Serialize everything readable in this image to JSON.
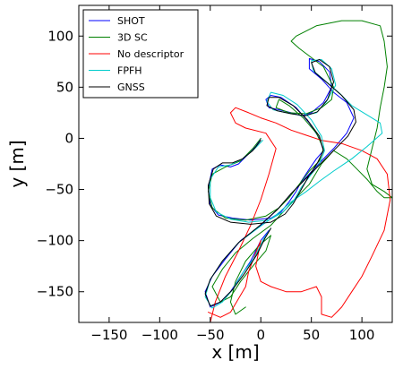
{
  "chart_data": {
    "type": "line",
    "xlabel": "x [m]",
    "ylabel": "y [m]",
    "xlim": [
      -180,
      130
    ],
    "ylim": [
      -180,
      130
    ],
    "xticks": [
      "−150",
      "−100",
      "−50",
      "0",
      "50",
      "100"
    ],
    "xtick_values": [
      -150,
      -100,
      -50,
      0,
      50,
      100
    ],
    "yticks": [
      "−150",
      "−100",
      "−50",
      "0",
      "50",
      "100"
    ],
    "ytick_values": [
      -150,
      -100,
      -50,
      0,
      50,
      100
    ],
    "grid": false,
    "legend_position": "top-left",
    "series": [
      {
        "name": "SHOT",
        "color": "#0000ff",
        "points": [
          [
            0,
            0
          ],
          [
            -5,
            -8
          ],
          [
            -15,
            -18
          ],
          [
            -22,
            -25
          ],
          [
            -30,
            -28
          ],
          [
            -40,
            -26
          ],
          [
            -48,
            -30
          ],
          [
            -52,
            -48
          ],
          [
            -50,
            -65
          ],
          [
            -42,
            -75
          ],
          [
            -28,
            -78
          ],
          [
            -10,
            -80
          ],
          [
            10,
            -78
          ],
          [
            20,
            -72
          ],
          [
            28,
            -62
          ],
          [
            35,
            -52
          ],
          [
            40,
            -42
          ],
          [
            48,
            -30
          ],
          [
            55,
            -20
          ],
          [
            62,
            -12
          ],
          [
            58,
            0
          ],
          [
            48,
            15
          ],
          [
            35,
            30
          ],
          [
            20,
            40
          ],
          [
            10,
            42
          ],
          [
            5,
            38
          ],
          [
            8,
            30
          ],
          [
            18,
            28
          ],
          [
            30,
            25
          ],
          [
            40,
            22
          ],
          [
            50,
            25
          ],
          [
            62,
            35
          ],
          [
            70,
            50
          ],
          [
            68,
            65
          ],
          [
            58,
            75
          ],
          [
            48,
            78
          ],
          [
            48,
            68
          ],
          [
            60,
            58
          ],
          [
            72,
            45
          ],
          [
            85,
            35
          ],
          [
            92,
            20
          ],
          [
            85,
            5
          ],
          [
            72,
            -10
          ],
          [
            60,
            -22
          ],
          [
            45,
            -38
          ],
          [
            32,
            -52
          ],
          [
            18,
            -68
          ],
          [
            0,
            -85
          ],
          [
            -20,
            -100
          ],
          [
            -35,
            -118
          ],
          [
            -48,
            -135
          ],
          [
            -55,
            -150
          ],
          [
            -50,
            -165
          ],
          [
            -40,
            -160
          ],
          [
            -30,
            -150
          ],
          [
            -20,
            -135
          ],
          [
            -10,
            -120
          ],
          [
            0,
            -100
          ],
          [
            8,
            -90
          ]
        ]
      },
      {
        "name": "3D SC",
        "color": "#008000",
        "points": [
          [
            0,
            0
          ],
          [
            -8,
            -10
          ],
          [
            -20,
            -22
          ],
          [
            -35,
            -28
          ],
          [
            -48,
            -35
          ],
          [
            -52,
            -52
          ],
          [
            -48,
            -68
          ],
          [
            -35,
            -78
          ],
          [
            -15,
            -80
          ],
          [
            5,
            -76
          ],
          [
            18,
            -68
          ],
          [
            28,
            -58
          ],
          [
            38,
            -45
          ],
          [
            48,
            -32
          ],
          [
            58,
            -22
          ],
          [
            62,
            -10
          ],
          [
            55,
            5
          ],
          [
            42,
            20
          ],
          [
            28,
            32
          ],
          [
            18,
            38
          ],
          [
            15,
            30
          ],
          [
            28,
            25
          ],
          [
            45,
            24
          ],
          [
            60,
            30
          ],
          [
            70,
            38
          ],
          [
            72,
            50
          ],
          [
            62,
            70
          ],
          [
            38,
            88
          ],
          [
            30,
            95
          ],
          [
            35,
            100
          ],
          [
            55,
            110
          ],
          [
            80,
            115
          ],
          [
            100,
            115
          ],
          [
            118,
            110
          ],
          [
            122,
            95
          ],
          [
            125,
            70
          ],
          [
            122,
            50
          ],
          [
            118,
            30
          ],
          [
            115,
            10
          ],
          [
            110,
            -10
          ],
          [
            105,
            -30
          ],
          [
            110,
            -45
          ],
          [
            122,
            -52
          ],
          [
            130,
            -58
          ],
          [
            122,
            -58
          ],
          [
            115,
            -52
          ],
          [
            105,
            -40
          ],
          [
            95,
            -30
          ],
          [
            85,
            -20
          ],
          [
            72,
            -12
          ],
          [
            60,
            -25
          ],
          [
            48,
            -45
          ],
          [
            35,
            -58
          ],
          [
            22,
            -72
          ],
          [
            10,
            -85
          ],
          [
            -8,
            -98
          ],
          [
            -25,
            -112
          ],
          [
            -38,
            -128
          ],
          [
            -48,
            -145
          ],
          [
            -40,
            -160
          ],
          [
            -30,
            -155
          ],
          [
            -20,
            -140
          ],
          [
            -8,
            -125
          ],
          [
            5,
            -110
          ],
          [
            10,
            -95
          ],
          [
            -2,
            -105
          ],
          [
            -15,
            -120
          ],
          [
            -25,
            -140
          ],
          [
            -30,
            -160
          ],
          [
            -25,
            -172
          ],
          [
            -15,
            -165
          ]
        ]
      },
      {
        "name": "No descriptor",
        "color": "#ff0000",
        "points": [
          [
            -50,
            -180
          ],
          [
            -45,
            -160
          ],
          [
            -35,
            -135
          ],
          [
            -22,
            -110
          ],
          [
            -10,
            -85
          ],
          [
            0,
            -60
          ],
          [
            8,
            -35
          ],
          [
            15,
            -10
          ],
          [
            5,
            5
          ],
          [
            -15,
            10
          ],
          [
            -25,
            15
          ],
          [
            -30,
            25
          ],
          [
            -25,
            30
          ],
          [
            -12,
            25
          ],
          [
            0,
            20
          ],
          [
            15,
            15
          ],
          [
            30,
            8
          ],
          [
            45,
            3
          ],
          [
            60,
            -2
          ],
          [
            80,
            -5
          ],
          [
            100,
            -12
          ],
          [
            115,
            -20
          ],
          [
            125,
            -35
          ],
          [
            128,
            -60
          ],
          [
            122,
            -90
          ],
          [
            110,
            -115
          ],
          [
            100,
            -135
          ],
          [
            90,
            -150
          ],
          [
            80,
            -165
          ],
          [
            70,
            -175
          ],
          [
            60,
            -172
          ],
          [
            60,
            -155
          ],
          [
            55,
            -145
          ],
          [
            40,
            -150
          ],
          [
            25,
            -150
          ],
          [
            10,
            -145
          ],
          [
            0,
            -140
          ],
          [
            -5,
            -125
          ],
          [
            -2,
            -110
          ],
          [
            0,
            -100
          ],
          [
            -5,
            -112
          ],
          [
            -12,
            -130
          ],
          [
            -15,
            -145
          ],
          [
            -30,
            -170
          ],
          [
            -40,
            -175
          ],
          [
            -52,
            -170
          ]
        ]
      },
      {
        "name": "FPFH",
        "color": "#00cccc",
        "points": [
          [
            2,
            -2
          ],
          [
            -6,
            -10
          ],
          [
            -18,
            -20
          ],
          [
            -30,
            -26
          ],
          [
            -42,
            -28
          ],
          [
            -50,
            -40
          ],
          [
            -50,
            -58
          ],
          [
            -44,
            -72
          ],
          [
            -30,
            -79
          ],
          [
            -12,
            -82
          ],
          [
            8,
            -80
          ],
          [
            22,
            -72
          ],
          [
            32,
            -62
          ],
          [
            40,
            -48
          ],
          [
            50,
            -35
          ],
          [
            58,
            -25
          ],
          [
            63,
            -12
          ],
          [
            60,
            2
          ],
          [
            50,
            18
          ],
          [
            36,
            33
          ],
          [
            22,
            42
          ],
          [
            10,
            45
          ],
          [
            6,
            36
          ],
          [
            12,
            28
          ],
          [
            25,
            25
          ],
          [
            42,
            22
          ],
          [
            55,
            25
          ],
          [
            65,
            36
          ],
          [
            74,
            52
          ],
          [
            70,
            68
          ],
          [
            60,
            77
          ],
          [
            50,
            76
          ],
          [
            52,
            66
          ],
          [
            64,
            56
          ],
          [
            78,
            44
          ],
          [
            90,
            32
          ],
          [
            118,
            15
          ],
          [
            120,
            5
          ],
          [
            105,
            -8
          ],
          [
            90,
            -20
          ],
          [
            72,
            -32
          ],
          [
            58,
            -42
          ],
          [
            45,
            -52
          ],
          [
            30,
            -62
          ],
          [
            15,
            -75
          ],
          [
            -3,
            -88
          ],
          [
            -22,
            -102
          ],
          [
            -38,
            -120
          ],
          [
            -50,
            -138
          ],
          [
            -55,
            -155
          ],
          [
            -48,
            -166
          ],
          [
            -38,
            -160
          ],
          [
            -28,
            -148
          ],
          [
            -18,
            -132
          ],
          [
            -6,
            -116
          ],
          [
            3,
            -98
          ],
          [
            10,
            -88
          ]
        ]
      },
      {
        "name": "GNSS",
        "color": "#000000",
        "points": [
          [
            0,
            -2
          ],
          [
            -8,
            -12
          ],
          [
            -18,
            -20
          ],
          [
            -28,
            -24
          ],
          [
            -38,
            -24
          ],
          [
            -47,
            -30
          ],
          [
            -52,
            -46
          ],
          [
            -51,
            -64
          ],
          [
            -44,
            -76
          ],
          [
            -30,
            -82
          ],
          [
            -10,
            -84
          ],
          [
            10,
            -82
          ],
          [
            24,
            -74
          ],
          [
            32,
            -64
          ],
          [
            40,
            -50
          ],
          [
            48,
            -36
          ],
          [
            56,
            -24
          ],
          [
            62,
            -12
          ],
          [
            58,
            2
          ],
          [
            46,
            18
          ],
          [
            32,
            32
          ],
          [
            18,
            40
          ],
          [
            8,
            40
          ],
          [
            6,
            32
          ],
          [
            16,
            27
          ],
          [
            30,
            24
          ],
          [
            44,
            22
          ],
          [
            56,
            26
          ],
          [
            66,
            38
          ],
          [
            72,
            55
          ],
          [
            68,
            70
          ],
          [
            58,
            77
          ],
          [
            50,
            74
          ],
          [
            54,
            64
          ],
          [
            66,
            54
          ],
          [
            80,
            42
          ],
          [
            92,
            28
          ],
          [
            94,
            16
          ],
          [
            86,
            2
          ],
          [
            72,
            -12
          ],
          [
            58,
            -26
          ],
          [
            44,
            -40
          ],
          [
            30,
            -54
          ],
          [
            16,
            -70
          ],
          [
            -2,
            -86
          ],
          [
            -22,
            -102
          ],
          [
            -38,
            -120
          ],
          [
            -50,
            -138
          ],
          [
            -55,
            -152
          ],
          [
            -50,
            -164
          ],
          [
            -40,
            -160
          ],
          [
            -28,
            -148
          ],
          [
            -16,
            -132
          ],
          [
            -4,
            -114
          ],
          [
            4,
            -98
          ],
          [
            10,
            -88
          ]
        ]
      }
    ]
  }
}
